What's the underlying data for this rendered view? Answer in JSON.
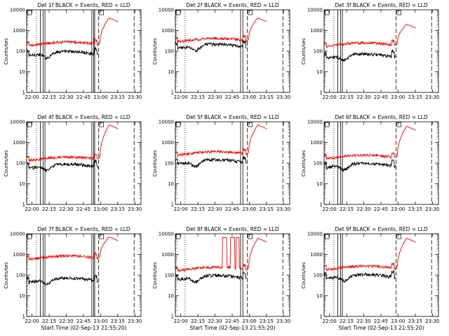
{
  "chart_data": {
    "type": "line",
    "layout": "3x3 grid",
    "x_tick_labels": [
      "22:00",
      "22:15",
      "22:30",
      "22:45",
      "23:00",
      "23:15",
      "23:30"
    ],
    "x_range_minutes": [
      0,
      100
    ],
    "xlabel": "Start Time (02-Sep-13 21:55:20)",
    "ylabel": "Counts/sec",
    "y_scale": "log",
    "y_range": [
      1,
      10000
    ],
    "y_tick_labels": [
      "1",
      "10",
      "100",
      "1000",
      "10000"
    ],
    "colors": {
      "events": "#000000",
      "lld": "#ff0000",
      "axes": "#000000",
      "background": "#ffffff"
    },
    "panels": [
      {
        "id": "1f",
        "title": "Det 1f BLACK = Events, RED = LLD",
        "xlabel": "",
        "events_base": 80,
        "lld_base": 250,
        "solid_lines": [
          12,
          14.5,
          16,
          57,
          58.5,
          59.5
        ],
        "dotted_lines": [
          8.5
        ],
        "dashed_lines": [
          0,
          63,
          94
        ],
        "end_peak": 4000,
        "spikes": []
      },
      {
        "id": "2f",
        "title": "Det 2f BLACK = Events, RED = LLD",
        "xlabel": "",
        "events_base": 180,
        "lld_base": 380,
        "solid_lines": [
          57,
          59
        ],
        "dotted_lines": [
          8.5
        ],
        "dashed_lines": [
          0,
          63,
          94
        ],
        "end_peak": 4000,
        "spikes": []
      },
      {
        "id": "3f",
        "title": "Det 3f BLACK = Events, RED = LLD",
        "xlabel": "",
        "events_base": 60,
        "lld_base": 230,
        "solid_lines": [
          12,
          14.5,
          16
        ],
        "dotted_lines": [
          8.5
        ],
        "dashed_lines": [
          0,
          63,
          94
        ],
        "end_peak": 2000,
        "spikes": []
      },
      {
        "id": "4f",
        "title": "Det 4f BLACK = Events, RED = LLD",
        "xlabel": "",
        "events_base": 75,
        "lld_base": 180,
        "solid_lines": [
          12,
          14.5,
          16,
          57,
          58.5,
          59.5
        ],
        "dotted_lines": [
          8.5
        ],
        "dashed_lines": [
          0,
          63,
          94
        ],
        "end_peak": 7000,
        "spikes": []
      },
      {
        "id": "5f",
        "title": "Det 5f BLACK = Events, RED = LLD",
        "xlabel": "",
        "events_base": 120,
        "lld_base": 330,
        "solid_lines": [
          57,
          59
        ],
        "dotted_lines": [
          8.5
        ],
        "dashed_lines": [
          0,
          63,
          94
        ],
        "end_peak": 7000,
        "spikes": []
      },
      {
        "id": "6f",
        "title": "Det 6f BLACK = Events, RED = LLD",
        "xlabel": "",
        "events_base": 80,
        "lld_base": 220,
        "solid_lines": [
          12,
          14.5,
          16
        ],
        "dotted_lines": [
          8.5
        ],
        "dashed_lines": [
          0,
          63,
          94
        ],
        "end_peak": 6000,
        "spikes": []
      },
      {
        "id": "7f",
        "title": "Det 7f BLACK = Events, RED = LLD",
        "xlabel": "Start Time (02-Sep-13 21:55:20)",
        "events_base": 60,
        "lld_base": 780,
        "solid_lines": [
          12,
          14.5,
          16,
          57,
          58.5,
          59.5
        ],
        "dotted_lines": [
          8.5
        ],
        "dashed_lines": [
          0,
          63,
          94
        ],
        "end_peak": 7000,
        "spikes": []
      },
      {
        "id": "8f",
        "title": "Det 8f BLACK = Events, RED = LLD",
        "xlabel": "Start Time (02-Sep-13 21:55:20)",
        "events_base": 80,
        "lld_base": 220,
        "solid_lines": [
          57,
          59
        ],
        "dotted_lines": [
          8.5
        ],
        "dashed_lines": [
          0,
          63,
          94
        ],
        "end_peak": 6000,
        "spikes": [
          [
            41,
            45
          ],
          [
            48,
            52
          ],
          [
            53,
            56
          ]
        ]
      },
      {
        "id": "9f",
        "title": "Det 9f BLACK = Events, RED = LLD",
        "xlabel": "Start Time (02-Sep-13 21:55:20)",
        "events_base": 90,
        "lld_base": 250,
        "solid_lines": [
          12,
          14.5,
          16
        ],
        "dotted_lines": [
          8.5
        ],
        "dashed_lines": [
          0,
          63,
          94
        ],
        "end_peak": 6000,
        "spikes": []
      }
    ]
  }
}
